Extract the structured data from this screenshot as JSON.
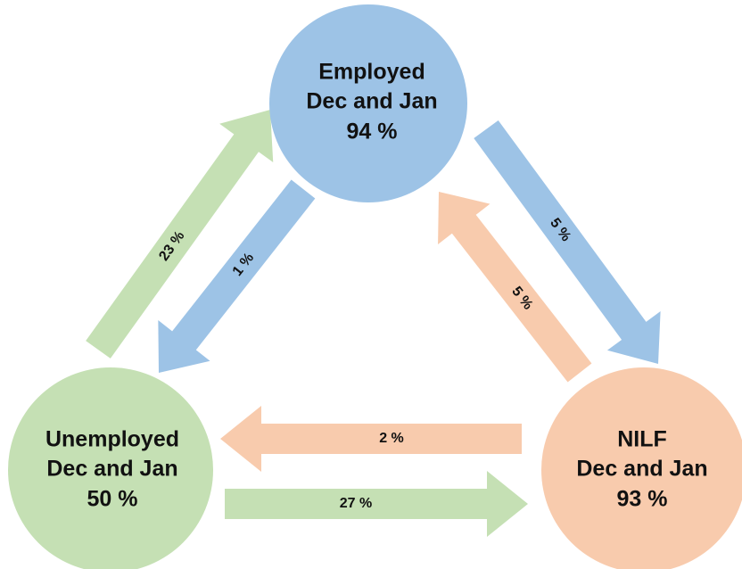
{
  "nodes": [
    {
      "label": "Employed",
      "period": "Dec and Jan",
      "value": "94 %"
    },
    {
      "label": "Unemployed",
      "period": "Dec and Jan",
      "value": "50 %"
    },
    {
      "label": "NILF",
      "period": "Dec and Jan",
      "value": "93 %"
    }
  ],
  "flows": [
    {
      "label": "23 %"
    },
    {
      "label": "1 %"
    },
    {
      "label": "5 %"
    },
    {
      "label": "5 %"
    },
    {
      "label": "2 %"
    },
    {
      "label": "27 %"
    }
  ]
}
